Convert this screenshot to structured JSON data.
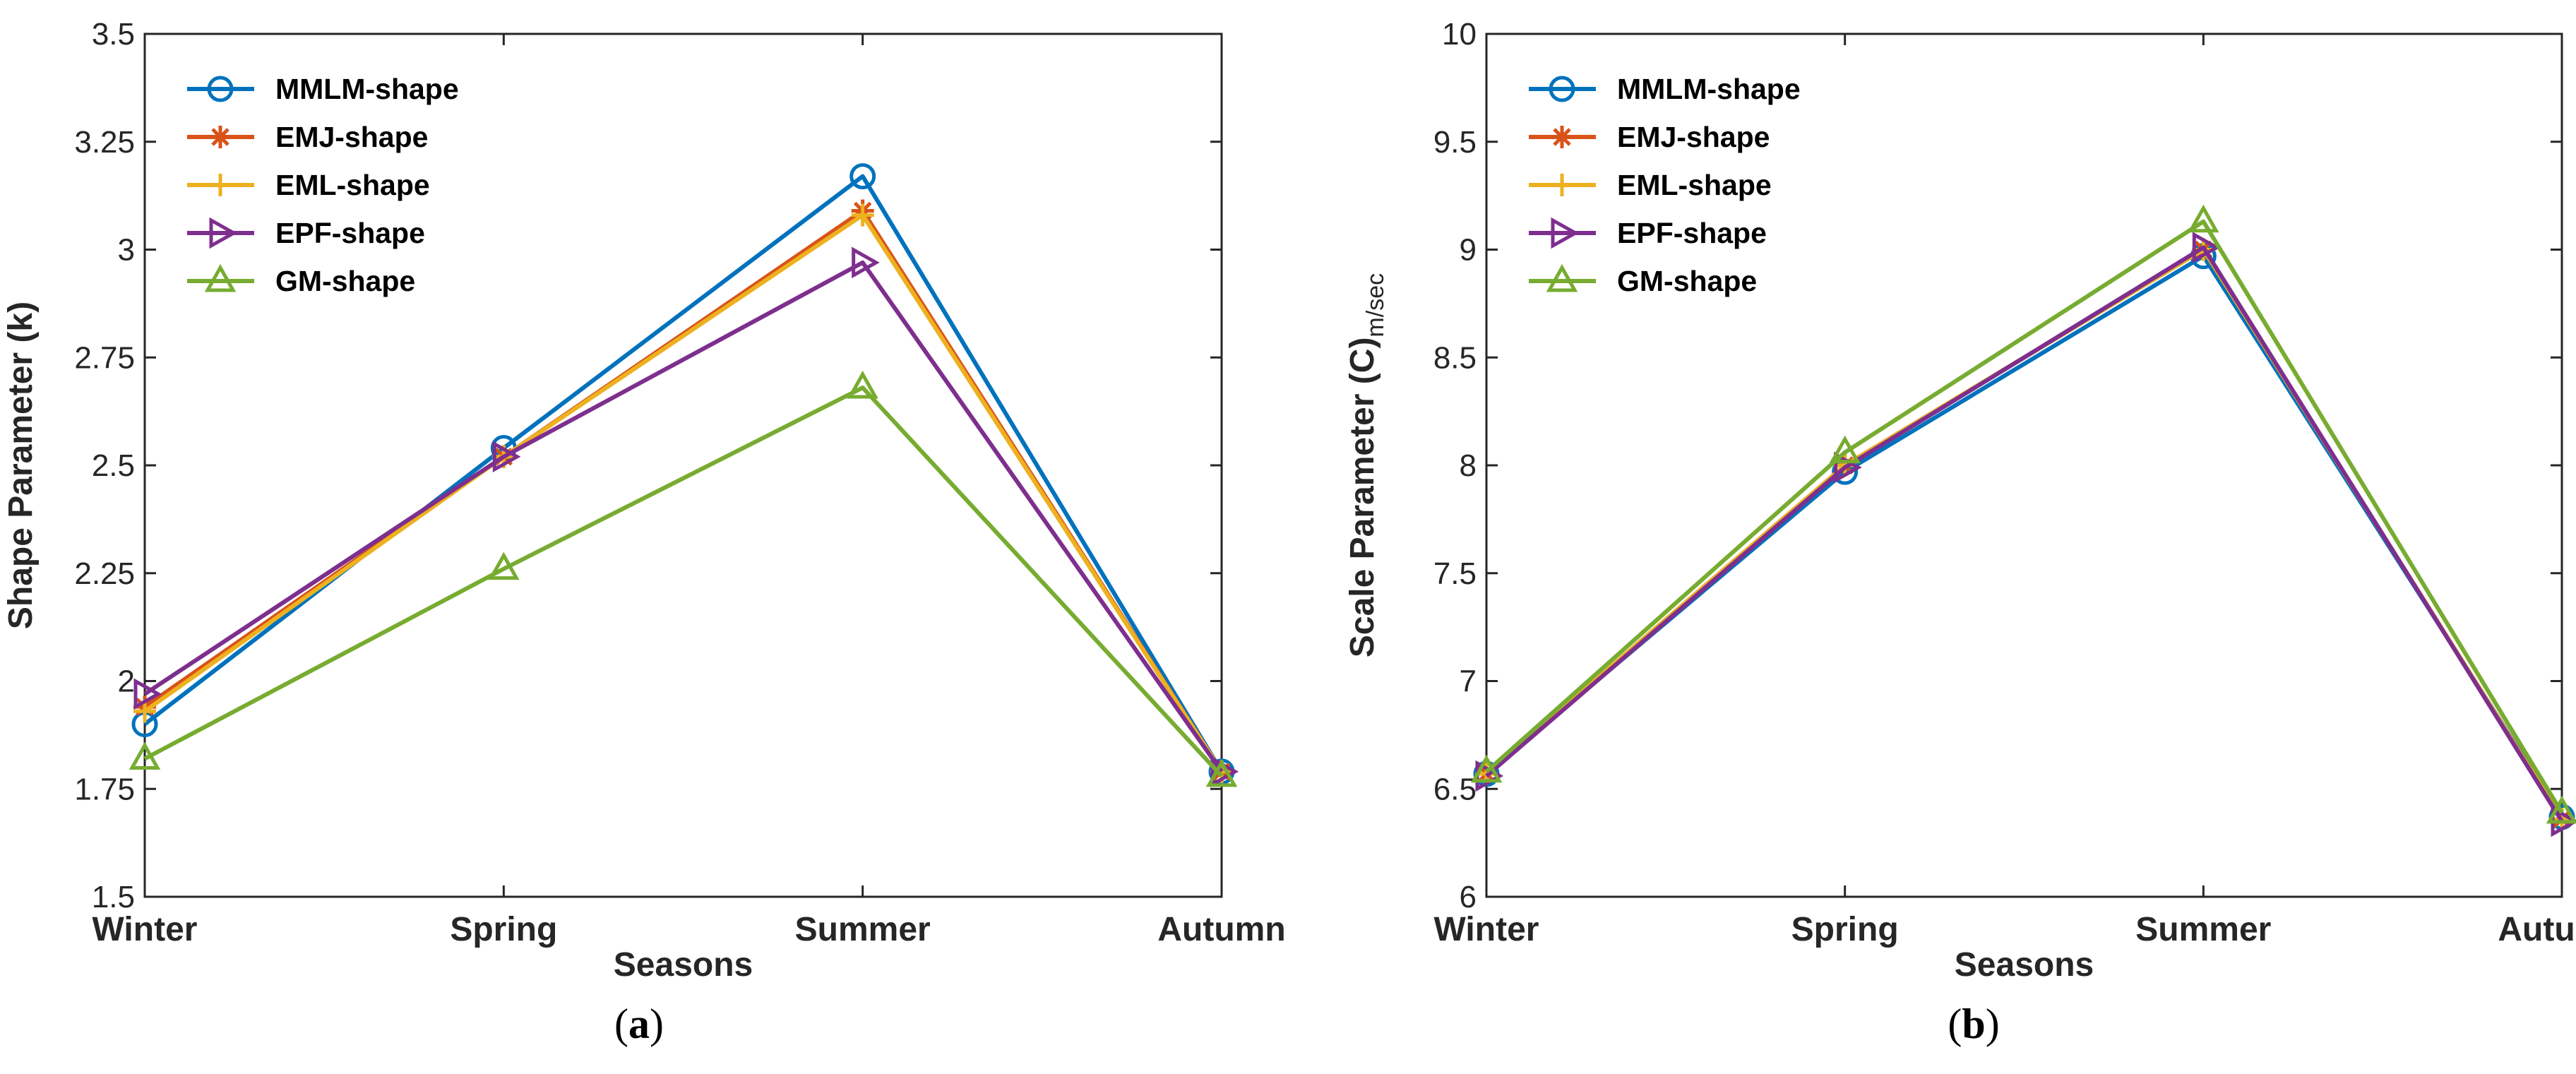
{
  "chart_data": [
    {
      "type": "line",
      "caption": "a",
      "xlabel": "Seasons",
      "ylabel": "Shape Parameter (k)",
      "categories": [
        "Winter",
        "Spring",
        "Summer",
        "Autumn"
      ],
      "ylim": [
        1.5,
        3.5
      ],
      "yticks": [
        1.5,
        1.75,
        2,
        2.25,
        2.5,
        2.75,
        3,
        3.25,
        3.5
      ],
      "ytick_labels": [
        "1.5",
        "1.75",
        "2",
        "2.25",
        "2.5",
        "2.75",
        "3",
        "3.25",
        "3.5"
      ],
      "legend_position": "top-left",
      "series": [
        {
          "name": "MMLM-shape",
          "color": "#0072BD",
          "marker": "circle",
          "values": [
            1.9,
            2.54,
            3.17,
            1.79
          ]
        },
        {
          "name": "EMJ-shape",
          "color": "#D95319",
          "marker": "asterisk",
          "values": [
            1.94,
            2.52,
            3.09,
            1.79
          ]
        },
        {
          "name": "EML-shape",
          "color": "#EDB120",
          "marker": "plus",
          "values": [
            1.93,
            2.52,
            3.08,
            1.79
          ]
        },
        {
          "name": "EPF-shape",
          "color": "#7E2F8E",
          "marker": "triangle-right",
          "values": [
            1.97,
            2.52,
            2.97,
            1.79
          ]
        },
        {
          "name": "GM-shape",
          "color": "#77AC30",
          "marker": "triangle-up",
          "values": [
            1.82,
            2.26,
            2.68,
            1.78
          ]
        }
      ]
    },
    {
      "type": "line",
      "caption": "b",
      "xlabel": "Seasons",
      "ylabel": "Scale Parameter (C)",
      "ylabel_subscript": "m/sec",
      "categories": [
        "Winter",
        "Spring",
        "Summer",
        "Autumn"
      ],
      "ylim": [
        6,
        10
      ],
      "yticks": [
        6,
        6.5,
        7,
        7.5,
        8,
        8.5,
        9,
        9.5,
        10
      ],
      "ytick_labels": [
        "6",
        "6.5",
        "7",
        "7.5",
        "8",
        "8.5",
        "9",
        "9.5",
        "10"
      ],
      "legend_position": "top-left",
      "series": [
        {
          "name": "MMLM-shape",
          "color": "#0072BD",
          "marker": "circle",
          "values": [
            6.57,
            7.97,
            8.97,
            6.37
          ]
        },
        {
          "name": "EMJ-shape",
          "color": "#D95319",
          "marker": "asterisk",
          "values": [
            6.57,
            8.0,
            9.0,
            6.36
          ]
        },
        {
          "name": "EML-shape",
          "color": "#EDB120",
          "marker": "plus",
          "values": [
            6.57,
            8.0,
            9.0,
            6.36
          ]
        },
        {
          "name": "EPF-shape",
          "color": "#7E2F8E",
          "marker": "triangle-right",
          "values": [
            6.56,
            7.99,
            9.01,
            6.35
          ]
        },
        {
          "name": "GM-shape",
          "color": "#77AC30",
          "marker": "triangle-up",
          "values": [
            6.58,
            8.06,
            9.13,
            6.39
          ]
        }
      ]
    }
  ]
}
